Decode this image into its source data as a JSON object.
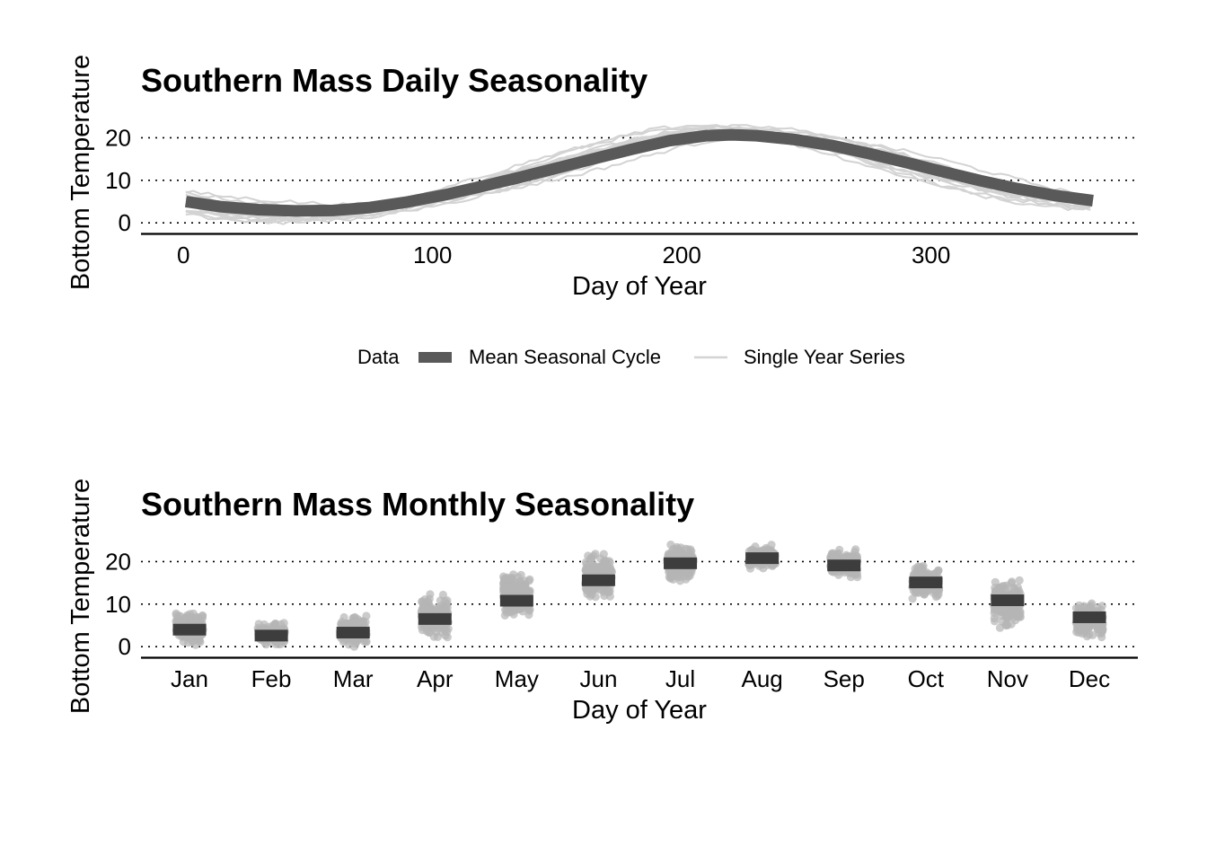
{
  "chart_data": [
    {
      "type": "line",
      "title": "Southern Mass Daily Seasonality",
      "xlabel": "Day of Year",
      "ylabel": "Bottom Temperature",
      "xlim": [
        -17,
        383
      ],
      "ylim": [
        -2.5,
        26
      ],
      "x_ticks": [
        0,
        100,
        200,
        300
      ],
      "y_ticks": [
        0,
        10,
        20
      ],
      "grid": "horizontal dotted",
      "mean_cycle": {
        "name": "Mean Seasonal Cycle",
        "color": "#595959",
        "x": [
          1,
          15,
          30,
          45,
          60,
          75,
          90,
          105,
          120,
          135,
          150,
          165,
          180,
          195,
          210,
          220,
          230,
          245,
          260,
          275,
          290,
          305,
          320,
          335,
          350,
          365
        ],
        "y": [
          5.0,
          3.8,
          3.1,
          2.8,
          2.9,
          3.6,
          4.9,
          6.6,
          8.6,
          10.7,
          12.9,
          15.1,
          17.3,
          19.3,
          20.5,
          20.7,
          20.5,
          19.6,
          18.2,
          16.3,
          14.2,
          12.0,
          9.9,
          8.0,
          6.4,
          5.2
        ]
      },
      "single_year_series": {
        "name": "Single Year Series",
        "color": "#d3d3d3",
        "count": 15,
        "spread": 2.2
      },
      "legend": {
        "title": "Data",
        "placement": "bottom",
        "entries": [
          "Mean Seasonal Cycle",
          "Single Year Series"
        ]
      }
    },
    {
      "type": "scatter",
      "title": "Southern Mass Monthly Seasonality",
      "xlabel": "Day of Year",
      "ylabel": "Bottom Temperature",
      "ylim": [
        -2.5,
        26
      ],
      "y_ticks": [
        0,
        10,
        20
      ],
      "grid": "horizontal dotted",
      "categories": [
        "Jan",
        "Feb",
        "Mar",
        "Apr",
        "May",
        "Jun",
        "Jul",
        "Aug",
        "Sep",
        "Oct",
        "Nov",
        "Dec"
      ],
      "monthly_mean": [
        4.0,
        2.6,
        3.3,
        6.5,
        10.8,
        15.6,
        19.6,
        20.8,
        19.1,
        15.1,
        10.9,
        6.9
      ],
      "monthly_min": [
        0.0,
        0.0,
        0.0,
        2.0,
        6.5,
        11.0,
        14.5,
        18.0,
        15.5,
        11.0,
        2.0,
        0.0
      ],
      "monthly_max": [
        9.5,
        6.5,
        8.5,
        13.5,
        20.0,
        24.0,
        25.0,
        24.5,
        23.5,
        20.0,
        16.0,
        11.5
      ],
      "point_color": "#b5b5b5",
      "mean_color": "#3d3d3d"
    }
  ],
  "legend_labels": {
    "title": "Data",
    "mean": "Mean Seasonal Cycle",
    "single": "Single Year Series"
  }
}
